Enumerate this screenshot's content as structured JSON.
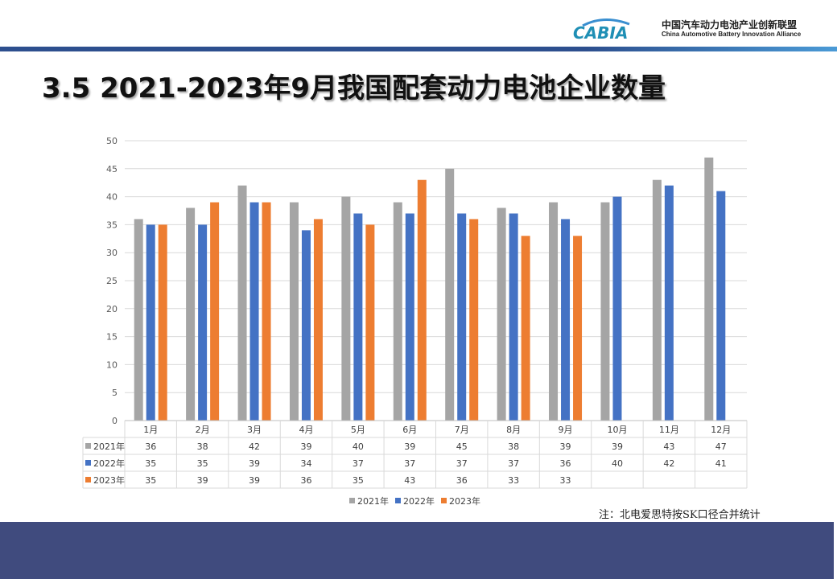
{
  "header": {
    "logo_mark": "CABIA",
    "org_name_cn": "中国汽车动力电池产业创新联盟",
    "org_name_en": "China Automotive Battery Innovation Alliance"
  },
  "page_title": "3.5 2021-2023年9月我国配套动力电池企业数量",
  "note": "注：北电爱思特按SK口径合并统计",
  "colors": {
    "s2021": "#a5a5a5",
    "s2022": "#4472c4",
    "s2023": "#ed7d31",
    "footer": "#404b7e"
  },
  "chart_data": {
    "type": "bar",
    "title": "",
    "xlabel": "",
    "ylabel": "",
    "ylim": [
      0,
      50
    ],
    "yticks": [
      0,
      5,
      10,
      15,
      20,
      25,
      30,
      35,
      40,
      45,
      50
    ],
    "grid": true,
    "legend_position": "bottom",
    "categories": [
      "1月",
      "2月",
      "3月",
      "4月",
      "5月",
      "6月",
      "7月",
      "8月",
      "9月",
      "10月",
      "11月",
      "12月"
    ],
    "series": [
      {
        "name": "2021年",
        "values": [
          36,
          38,
          42,
          39,
          40,
          39,
          45,
          38,
          39,
          39,
          43,
          47
        ]
      },
      {
        "name": "2022年",
        "values": [
          35,
          35,
          39,
          34,
          37,
          37,
          37,
          37,
          36,
          40,
          42,
          41
        ]
      },
      {
        "name": "2023年",
        "values": [
          35,
          39,
          39,
          36,
          35,
          43,
          36,
          33,
          33,
          null,
          null,
          null
        ]
      }
    ]
  }
}
